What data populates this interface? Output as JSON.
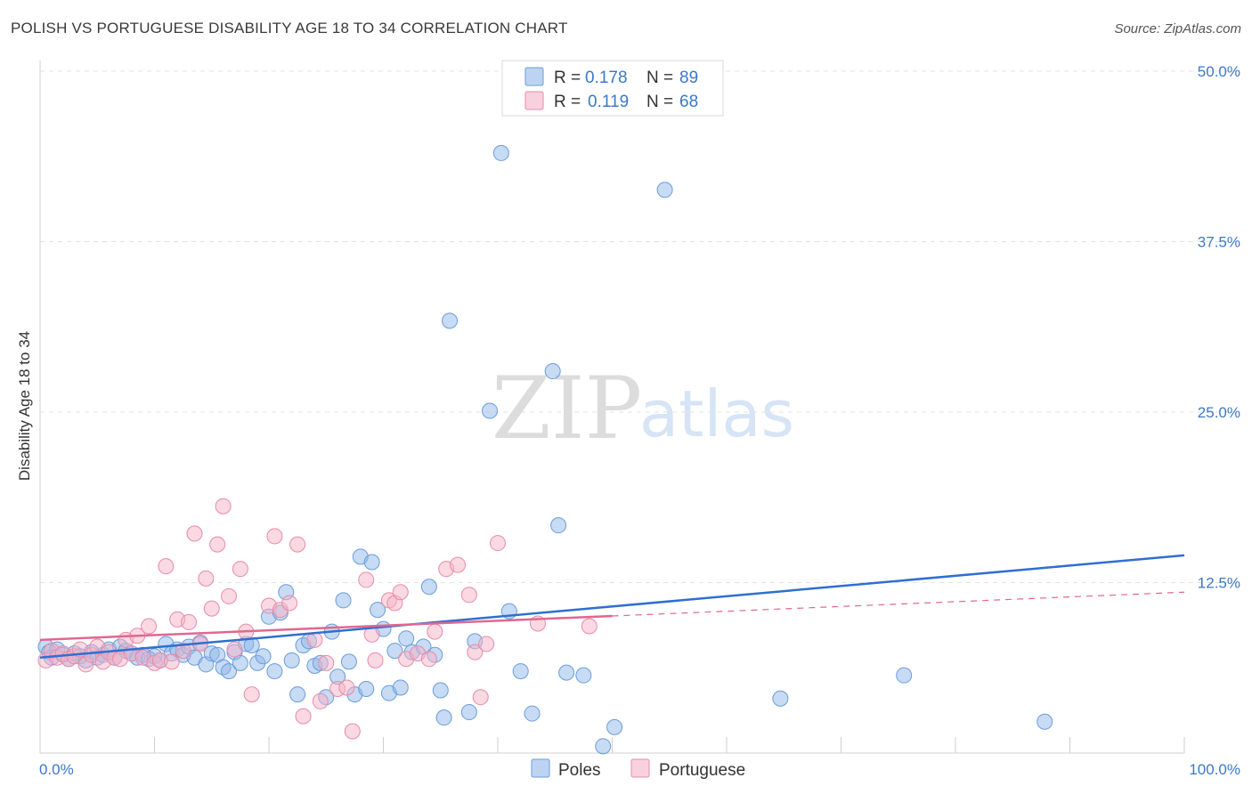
{
  "title": "POLISH VS PORTUGUESE DISABILITY AGE 18 TO 34 CORRELATION CHART",
  "source": "Source: ZipAtlas.com",
  "watermark": {
    "zip": "ZIP",
    "atlas": "atlas"
  },
  "chart_data": {
    "type": "scatter",
    "ylabel": "Disability Age 18 to 34",
    "xlim": [
      0,
      100
    ],
    "ylim": [
      0,
      50
    ],
    "x_tick_labels": {
      "min": "0.0%",
      "max": "100.0%"
    },
    "y_ticks": [
      {
        "value": 12.5,
        "label": "12.5%"
      },
      {
        "value": 25.0,
        "label": "25.0%"
      },
      {
        "value": 37.5,
        "label": "37.5%"
      },
      {
        "value": 50.0,
        "label": "50.0%"
      }
    ],
    "grid": true,
    "legend": {
      "placement": "top-center",
      "entries": [
        {
          "series": "Poles",
          "r_label": "R =",
          "r_value": "0.178",
          "n_label": "N =",
          "n_value": "89"
        },
        {
          "series": "Portuguese",
          "r_label": "R =",
          "r_value": "0.119",
          "n_label": "N =",
          "n_value": "68"
        }
      ]
    },
    "series": [
      {
        "name": "Poles",
        "color": "#8fb8ea",
        "stroke": "#6a9cd9",
        "line_color": "#2f6fd0",
        "trend": {
          "x0": 0,
          "y0": 7.0,
          "x1": 100,
          "y1": 14.5,
          "dashed_from": null
        },
        "points": [
          [
            0.5,
            7.8
          ],
          [
            0.8,
            7.4
          ],
          [
            1.0,
            7.0
          ],
          [
            1.5,
            7.6
          ],
          [
            2.0,
            7.2
          ],
          [
            2.5,
            6.9
          ],
          [
            3.0,
            7.3
          ],
          [
            3.5,
            7.1
          ],
          [
            4.0,
            6.8
          ],
          [
            4.5,
            7.4
          ],
          [
            5.0,
            7.0
          ],
          [
            5.5,
            7.2
          ],
          [
            6.0,
            7.6
          ],
          [
            6.5,
            7.0
          ],
          [
            7.0,
            7.8
          ],
          [
            7.5,
            7.5
          ],
          [
            8.0,
            7.3
          ],
          [
            8.5,
            7.0
          ],
          [
            9.0,
            7.2
          ],
          [
            9.5,
            6.9
          ],
          [
            10.0,
            7.1
          ],
          [
            10.5,
            6.8
          ],
          [
            11.0,
            8.0
          ],
          [
            11.5,
            7.3
          ],
          [
            12.0,
            7.6
          ],
          [
            12.5,
            7.2
          ],
          [
            13.0,
            7.8
          ],
          [
            13.5,
            7.0
          ],
          [
            14.0,
            8.1
          ],
          [
            14.5,
            6.5
          ],
          [
            15.0,
            7.3
          ],
          [
            15.5,
            7.2
          ],
          [
            16.0,
            6.3
          ],
          [
            16.5,
            6.0
          ],
          [
            17.0,
            7.4
          ],
          [
            17.5,
            6.6
          ],
          [
            18.0,
            8.0
          ],
          [
            18.5,
            7.9
          ],
          [
            19.0,
            6.6
          ],
          [
            19.5,
            7.1
          ],
          [
            20.0,
            10.0
          ],
          [
            20.5,
            6.0
          ],
          [
            21.0,
            10.3
          ],
          [
            21.5,
            11.8
          ],
          [
            22.0,
            6.8
          ],
          [
            22.5,
            4.3
          ],
          [
            23.0,
            7.9
          ],
          [
            23.5,
            8.2
          ],
          [
            24.0,
            6.4
          ],
          [
            24.5,
            6.6
          ],
          [
            25.0,
            4.1
          ],
          [
            25.5,
            8.9
          ],
          [
            26.0,
            5.6
          ],
          [
            26.5,
            11.2
          ],
          [
            27.0,
            6.7
          ],
          [
            27.5,
            4.3
          ],
          [
            28.0,
            14.4
          ],
          [
            28.5,
            4.7
          ],
          [
            29.0,
            14.0
          ],
          [
            29.5,
            10.5
          ],
          [
            30.0,
            9.1
          ],
          [
            30.5,
            4.4
          ],
          [
            31.0,
            7.5
          ],
          [
            31.5,
            4.8
          ],
          [
            32.0,
            8.4
          ],
          [
            32.5,
            7.4
          ],
          [
            33.5,
            7.8
          ],
          [
            34.0,
            12.2
          ],
          [
            34.5,
            7.2
          ],
          [
            35.0,
            4.6
          ],
          [
            35.3,
            2.6
          ],
          [
            35.8,
            31.7
          ],
          [
            37.5,
            3.0
          ],
          [
            38.0,
            8.2
          ],
          [
            39.3,
            25.1
          ],
          [
            40.3,
            44.0
          ],
          [
            41.0,
            10.4
          ],
          [
            42.0,
            6.0
          ],
          [
            43.0,
            2.9
          ],
          [
            44.8,
            28.0
          ],
          [
            45.3,
            16.7
          ],
          [
            46.0,
            5.9
          ],
          [
            47.5,
            5.7
          ],
          [
            49.2,
            0.5
          ],
          [
            50.2,
            1.9
          ],
          [
            54.6,
            41.3
          ],
          [
            64.7,
            4.0
          ],
          [
            75.5,
            5.7
          ],
          [
            87.8,
            2.3
          ]
        ]
      },
      {
        "name": "Portuguese",
        "color": "#f5b3c8",
        "stroke": "#e88aa8",
        "line_color": "#e06890",
        "trend": {
          "x0": 0,
          "y0": 8.3,
          "x1": 100,
          "y1": 11.8,
          "dashed_from": 50
        },
        "points": [
          [
            0.5,
            6.8
          ],
          [
            1.0,
            7.5
          ],
          [
            1.5,
            7.0
          ],
          [
            2.0,
            7.3
          ],
          [
            2.5,
            6.9
          ],
          [
            3.0,
            7.1
          ],
          [
            3.5,
            7.6
          ],
          [
            4.0,
            6.5
          ],
          [
            4.5,
            7.2
          ],
          [
            5.0,
            7.8
          ],
          [
            5.5,
            6.7
          ],
          [
            6.0,
            7.4
          ],
          [
            6.5,
            7.0
          ],
          [
            7.0,
            6.9
          ],
          [
            7.5,
            8.3
          ],
          [
            8.0,
            7.3
          ],
          [
            8.5,
            8.6
          ],
          [
            9.0,
            7.0
          ],
          [
            9.5,
            9.3
          ],
          [
            10.0,
            6.6
          ],
          [
            10.5,
            6.8
          ],
          [
            11.0,
            13.7
          ],
          [
            11.5,
            6.7
          ],
          [
            12.0,
            9.8
          ],
          [
            12.5,
            7.5
          ],
          [
            13.0,
            9.6
          ],
          [
            13.5,
            16.1
          ],
          [
            14.0,
            8.0
          ],
          [
            14.5,
            12.8
          ],
          [
            15.0,
            10.6
          ],
          [
            15.5,
            15.3
          ],
          [
            16.0,
            18.1
          ],
          [
            16.5,
            11.5
          ],
          [
            17.0,
            7.6
          ],
          [
            17.5,
            13.5
          ],
          [
            18.0,
            8.9
          ],
          [
            18.5,
            4.3
          ],
          [
            20.0,
            10.8
          ],
          [
            20.5,
            15.9
          ],
          [
            21.0,
            10.5
          ],
          [
            21.8,
            11.0
          ],
          [
            22.5,
            15.3
          ],
          [
            23.0,
            2.7
          ],
          [
            24.0,
            8.3
          ],
          [
            24.5,
            3.8
          ],
          [
            25.0,
            6.6
          ],
          [
            26.0,
            4.7
          ],
          [
            26.8,
            4.8
          ],
          [
            27.3,
            1.6
          ],
          [
            28.5,
            12.7
          ],
          [
            29.0,
            8.7
          ],
          [
            29.3,
            6.8
          ],
          [
            30.5,
            11.2
          ],
          [
            31.0,
            11.0
          ],
          [
            31.5,
            11.8
          ],
          [
            32.0,
            6.9
          ],
          [
            33.0,
            7.3
          ],
          [
            34.0,
            6.9
          ],
          [
            34.5,
            8.9
          ],
          [
            35.5,
            13.5
          ],
          [
            36.5,
            13.8
          ],
          [
            37.5,
            11.6
          ],
          [
            38.0,
            7.4
          ],
          [
            38.5,
            4.1
          ],
          [
            39.0,
            8.0
          ],
          [
            40.0,
            15.4
          ],
          [
            43.5,
            9.5
          ],
          [
            48.0,
            9.3
          ]
        ]
      }
    ],
    "bottom_legend": [
      "Poles",
      "Portuguese"
    ]
  }
}
